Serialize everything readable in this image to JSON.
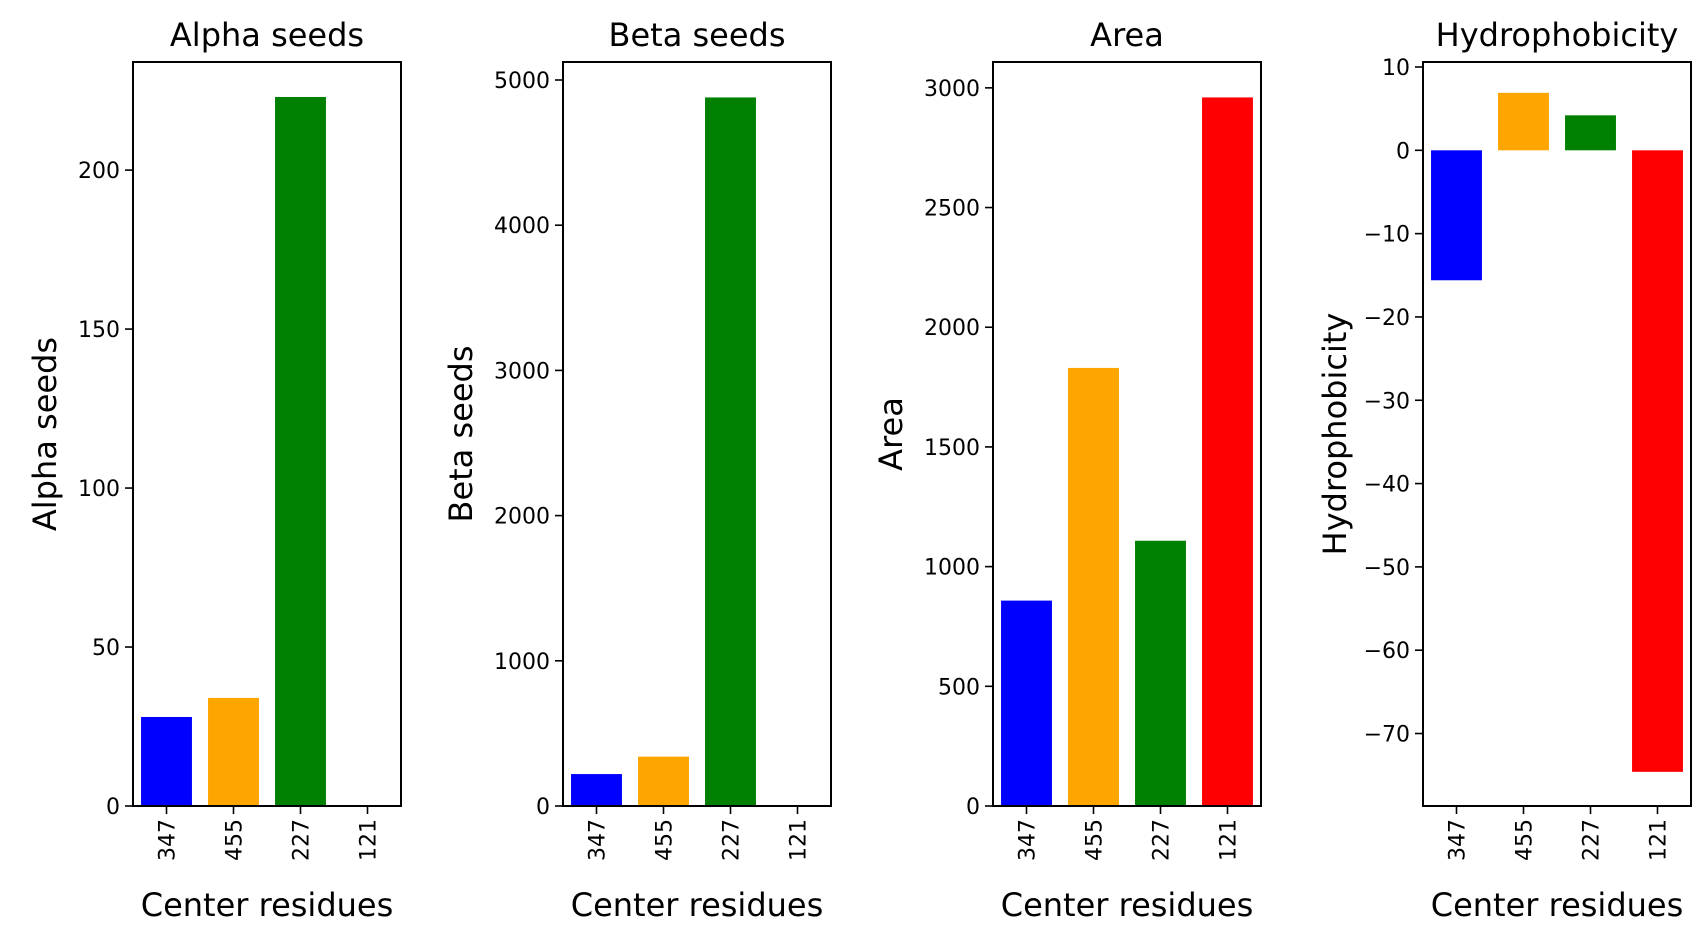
{
  "chart_data": [
    {
      "type": "bar",
      "title": "Alpha seeds",
      "xlabel": "Center residues",
      "ylabel": "Alpha seeds",
      "categories": [
        "347",
        "455",
        "227",
        "121"
      ],
      "values": [
        28,
        34,
        223,
        0
      ],
      "colors": [
        "#0000ff",
        "#ffa500",
        "#008000",
        "#ff0000"
      ],
      "ylim": [
        0,
        234
      ],
      "yticks": [
        0,
        50,
        100,
        150,
        200
      ],
      "ytick_labels": [
        "0",
        "50",
        "100",
        "150",
        "200"
      ],
      "grid": false,
      "legend": "none"
    },
    {
      "type": "bar",
      "title": "Beta seeds",
      "xlabel": "Center residues",
      "ylabel": "Beta seeds",
      "categories": [
        "347",
        "455",
        "227",
        "121"
      ],
      "values": [
        220,
        340,
        4880,
        0
      ],
      "colors": [
        "#0000ff",
        "#ffa500",
        "#008000",
        "#ff0000"
      ],
      "ylim": [
        0,
        5124
      ],
      "yticks": [
        0,
        1000,
        2000,
        3000,
        4000,
        5000
      ],
      "ytick_labels": [
        "0",
        "1000",
        "2000",
        "3000",
        "4000",
        "5000"
      ],
      "grid": false,
      "legend": "none"
    },
    {
      "type": "bar",
      "title": "Area",
      "xlabel": "Center residues",
      "ylabel": "Area",
      "categories": [
        "347",
        "455",
        "227",
        "121"
      ],
      "values": [
        858,
        1830,
        1108,
        2960
      ],
      "colors": [
        "#0000ff",
        "#ffa500",
        "#008000",
        "#ff0000"
      ],
      "ylim": [
        0,
        3108
      ],
      "yticks": [
        0,
        500,
        1000,
        1500,
        2000,
        2500,
        3000
      ],
      "ytick_labels": [
        "0",
        "500",
        "1000",
        "1500",
        "2000",
        "2500",
        "3000"
      ],
      "grid": false,
      "legend": "none"
    },
    {
      "type": "bar",
      "title": "Hydrophobicity",
      "xlabel": "Center residues",
      "ylabel": "Hydrophobicity",
      "categories": [
        "347",
        "455",
        "227",
        "121"
      ],
      "values": [
        -15.6,
        6.9,
        4.2,
        -74.6
      ],
      "colors": [
        "#0000ff",
        "#ffa500",
        "#008000",
        "#ff0000"
      ],
      "ylim": [
        -78.7,
        10.6
      ],
      "yticks": [
        10,
        0,
        -10,
        -20,
        -30,
        -40,
        -50,
        -60,
        -70
      ],
      "ytick_labels": [
        "10",
        "0",
        "−10",
        "−20",
        "−30",
        "−40",
        "−50",
        "−60",
        "−70"
      ],
      "grid": false,
      "legend": "none"
    }
  ]
}
